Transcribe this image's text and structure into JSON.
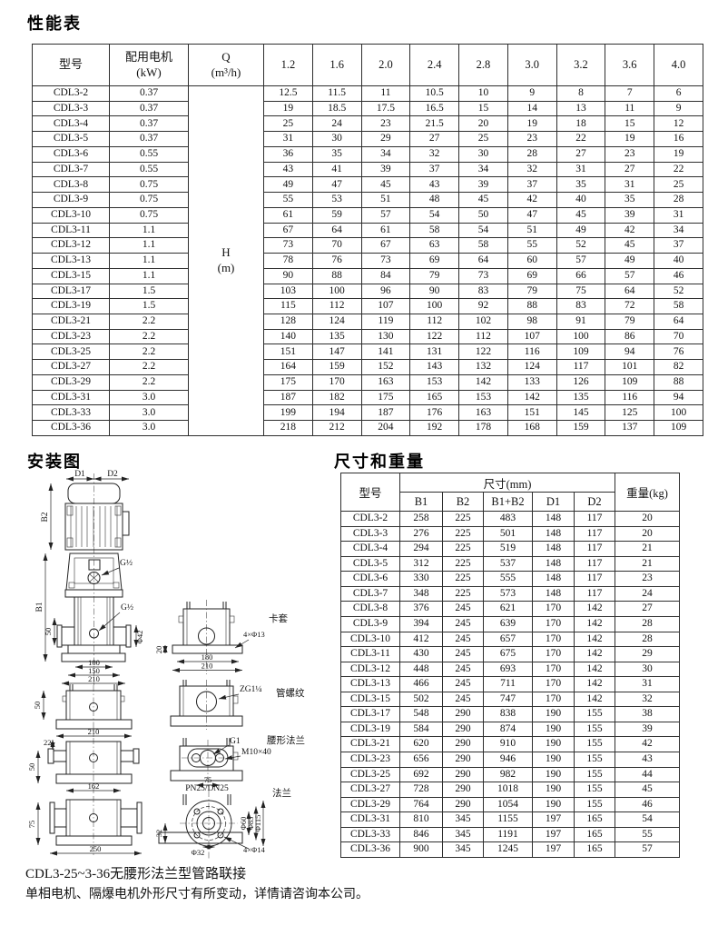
{
  "page": {
    "title_performance": "性能表",
    "title_installation": "安装图",
    "title_dimensions": "尺寸和重量",
    "footnote_line1": "CDL3-25~3-36无腰形法兰型管路联接",
    "footnote_line2": "单相电机、隔爆电机外形尺寸有所变动，详情请咨询本公司。"
  },
  "performance_table": {
    "col_model": "型号",
    "col_motor_line1": "配用电机",
    "col_motor_line2": "(kW)",
    "col_q_line1": "Q",
    "col_q_line2": "(m³/h)",
    "h_label_line1": "H",
    "h_label_line2": "(m)",
    "flow_values": [
      "1.2",
      "1.6",
      "2.0",
      "2.4",
      "2.8",
      "3.0",
      "3.2",
      "3.6",
      "4.0"
    ],
    "rows": [
      [
        "CDL3-2",
        "0.37",
        "12.5",
        "11.5",
        "11",
        "10.5",
        "10",
        "9",
        "8",
        "7",
        "6"
      ],
      [
        "CDL3-3",
        "0.37",
        "19",
        "18.5",
        "17.5",
        "16.5",
        "15",
        "14",
        "13",
        "11",
        "9"
      ],
      [
        "CDL3-4",
        "0.37",
        "25",
        "24",
        "23",
        "21.5",
        "20",
        "19",
        "18",
        "15",
        "12"
      ],
      [
        "CDL3-5",
        "0.37",
        "31",
        "30",
        "29",
        "27",
        "25",
        "23",
        "22",
        "19",
        "16"
      ],
      [
        "CDL3-6",
        "0.55",
        "36",
        "35",
        "34",
        "32",
        "30",
        "28",
        "27",
        "23",
        "19"
      ],
      [
        "CDL3-7",
        "0.55",
        "43",
        "41",
        "39",
        "37",
        "34",
        "32",
        "31",
        "27",
        "22"
      ],
      [
        "CDL3-8",
        "0.75",
        "49",
        "47",
        "45",
        "43",
        "39",
        "37",
        "35",
        "31",
        "25"
      ],
      [
        "CDL3-9",
        "0.75",
        "55",
        "53",
        "51",
        "48",
        "45",
        "42",
        "40",
        "35",
        "28"
      ],
      [
        "CDL3-10",
        "0.75",
        "61",
        "59",
        "57",
        "54",
        "50",
        "47",
        "45",
        "39",
        "31"
      ],
      [
        "CDL3-11",
        "1.1",
        "67",
        "64",
        "61",
        "58",
        "54",
        "51",
        "49",
        "42",
        "34"
      ],
      [
        "CDL3-12",
        "1.1",
        "73",
        "70",
        "67",
        "63",
        "58",
        "55",
        "52",
        "45",
        "37"
      ],
      [
        "CDL3-13",
        "1.1",
        "78",
        "76",
        "73",
        "69",
        "64",
        "60",
        "57",
        "49",
        "40"
      ],
      [
        "CDL3-15",
        "1.1",
        "90",
        "88",
        "84",
        "79",
        "73",
        "69",
        "66",
        "57",
        "46"
      ],
      [
        "CDL3-17",
        "1.5",
        "103",
        "100",
        "96",
        "90",
        "83",
        "79",
        "75",
        "64",
        "52"
      ],
      [
        "CDL3-19",
        "1.5",
        "115",
        "112",
        "107",
        "100",
        "92",
        "88",
        "83",
        "72",
        "58"
      ],
      [
        "CDL3-21",
        "2.2",
        "128",
        "124",
        "119",
        "112",
        "102",
        "98",
        "91",
        "79",
        "64"
      ],
      [
        "CDL3-23",
        "2.2",
        "140",
        "135",
        "130",
        "122",
        "112",
        "107",
        "100",
        "86",
        "70"
      ],
      [
        "CDL3-25",
        "2.2",
        "151",
        "147",
        "141",
        "131",
        "122",
        "116",
        "109",
        "94",
        "76"
      ],
      [
        "CDL3-27",
        "2.2",
        "164",
        "159",
        "152",
        "143",
        "132",
        "124",
        "117",
        "101",
        "82"
      ],
      [
        "CDL3-29",
        "2.2",
        "175",
        "170",
        "163",
        "153",
        "142",
        "133",
        "126",
        "109",
        "88"
      ],
      [
        "CDL3-31",
        "3.0",
        "187",
        "182",
        "175",
        "165",
        "153",
        "142",
        "135",
        "116",
        "94"
      ],
      [
        "CDL3-33",
        "3.0",
        "199",
        "194",
        "187",
        "176",
        "163",
        "151",
        "145",
        "125",
        "100"
      ],
      [
        "CDL3-36",
        "3.0",
        "218",
        "212",
        "204",
        "192",
        "178",
        "168",
        "159",
        "137",
        "109"
      ]
    ]
  },
  "dimensions_table": {
    "col_model": "型号",
    "col_size_group": "尺寸(mm)",
    "col_b1": "B1",
    "col_b2": "B2",
    "col_b1b2": "B1+B2",
    "col_d1": "D1",
    "col_d2": "D2",
    "col_weight": "重量(kg)",
    "rows": [
      [
        "CDL3-2",
        "258",
        "225",
        "483",
        "148",
        "117",
        "20"
      ],
      [
        "CDL3-3",
        "276",
        "225",
        "501",
        "148",
        "117",
        "20"
      ],
      [
        "CDL3-4",
        "294",
        "225",
        "519",
        "148",
        "117",
        "21"
      ],
      [
        "CDL3-5",
        "312",
        "225",
        "537",
        "148",
        "117",
        "21"
      ],
      [
        "CDL3-6",
        "330",
        "225",
        "555",
        "148",
        "117",
        "23"
      ],
      [
        "CDL3-7",
        "348",
        "225",
        "573",
        "148",
        "117",
        "24"
      ],
      [
        "CDL3-8",
        "376",
        "245",
        "621",
        "170",
        "142",
        "27"
      ],
      [
        "CDL3-9",
        "394",
        "245",
        "639",
        "170",
        "142",
        "28"
      ],
      [
        "CDL3-10",
        "412",
        "245",
        "657",
        "170",
        "142",
        "28"
      ],
      [
        "CDL3-11",
        "430",
        "245",
        "675",
        "170",
        "142",
        "29"
      ],
      [
        "CDL3-12",
        "448",
        "245",
        "693",
        "170",
        "142",
        "30"
      ],
      [
        "CDL3-13",
        "466",
        "245",
        "711",
        "170",
        "142",
        "31"
      ],
      [
        "CDL3-15",
        "502",
        "245",
        "747",
        "170",
        "142",
        "32"
      ],
      [
        "CDL3-17",
        "548",
        "290",
        "838",
        "190",
        "155",
        "38"
      ],
      [
        "CDL3-19",
        "584",
        "290",
        "874",
        "190",
        "155",
        "39"
      ],
      [
        "CDL3-21",
        "620",
        "290",
        "910",
        "190",
        "155",
        "42"
      ],
      [
        "CDL3-23",
        "656",
        "290",
        "946",
        "190",
        "155",
        "43"
      ],
      [
        "CDL3-25",
        "692",
        "290",
        "982",
        "190",
        "155",
        "44"
      ],
      [
        "CDL3-27",
        "728",
        "290",
        "1018",
        "190",
        "155",
        "45"
      ],
      [
        "CDL3-29",
        "764",
        "290",
        "1054",
        "190",
        "155",
        "46"
      ],
      [
        "CDL3-31",
        "810",
        "345",
        "1155",
        "197",
        "165",
        "54"
      ],
      [
        "CDL3-33",
        "846",
        "345",
        "1191",
        "197",
        "165",
        "55"
      ],
      [
        "CDL3-36",
        "900",
        "345",
        "1245",
        "197",
        "165",
        "57"
      ]
    ]
  },
  "diagram": {
    "labels": {
      "d1": "D1",
      "d2": "D2",
      "b1": "B1",
      "b2": "B2",
      "dim50_main": "50",
      "phi42": "Φ42",
      "dim100": "100",
      "dim150": "150",
      "dim210_main": "210",
      "g_half_1": "G½",
      "g_half_2": "G½",
      "katao": "卡套",
      "four_phi13": "4×Φ13",
      "dim20": "20",
      "dim180": "180",
      "dim210_clamp": "210",
      "dim50_mid": "50",
      "dim210_mid": "210",
      "zg114": "ZG1¼",
      "pipe_thread": "管螺纹",
      "dim22": "22",
      "dim50_low": "50",
      "dim162": "162",
      "g1": "G1",
      "m10x40": "M10×40",
      "dim75_waist": "75",
      "waist_flange": "腰形法兰",
      "dim75_bottom": "75",
      "dim250": "250",
      "pn": "PN25/DN25",
      "dim32": "32",
      "phi32": "Φ32",
      "four_phi14": "4×Φ14",
      "phi60": "Φ60",
      "phi85": "Φ85",
      "phi115": "Φ115",
      "flange": "法兰"
    }
  }
}
